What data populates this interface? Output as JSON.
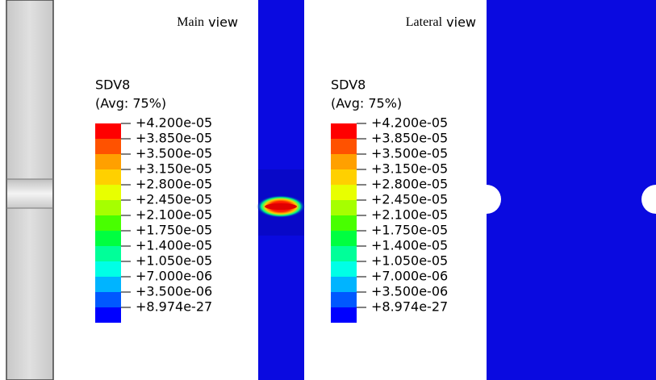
{
  "panels": [
    {
      "caption_serif": "Main",
      "caption_sans": "view",
      "legend": {
        "title": "SDV8",
        "subtitle": "(Avg: 75%)",
        "levels": [
          "+4.200e-05",
          "+3.850e-05",
          "+3.500e-05",
          "+3.150e-05",
          "+2.800e-05",
          "+2.450e-05",
          "+2.100e-05",
          "+1.750e-05",
          "+1.400e-05",
          "+1.050e-05",
          "+7.000e-06",
          "+3.500e-06",
          "+8.974e-27"
        ],
        "colors": [
          "#ff0000",
          "#ff5200",
          "#ffa000",
          "#ffd000",
          "#e8ff00",
          "#a6ff00",
          "#48ff00",
          "#00ff40",
          "#00ff99",
          "#00ffe6",
          "#00b4ff",
          "#0058ff",
          "#0000ff"
        ]
      }
    },
    {
      "caption_serif": "Lateral",
      "caption_sans": "view",
      "legend": {
        "title": "SDV8",
        "subtitle": "(Avg: 75%)",
        "levels": [
          "+4.200e-05",
          "+3.850e-05",
          "+3.500e-05",
          "+3.150e-05",
          "+2.800e-05",
          "+2.450e-05",
          "+2.100e-05",
          "+1.750e-05",
          "+1.400e-05",
          "+1.050e-05",
          "+7.000e-06",
          "+3.500e-06",
          "+8.974e-27"
        ],
        "colors": [
          "#ff0000",
          "#ff5200",
          "#ffa000",
          "#ffd000",
          "#e8ff00",
          "#a6ff00",
          "#48ff00",
          "#00ff40",
          "#00ff99",
          "#00ffe6",
          "#00b4ff",
          "#0058ff",
          "#0000ff"
        ]
      }
    }
  ]
}
